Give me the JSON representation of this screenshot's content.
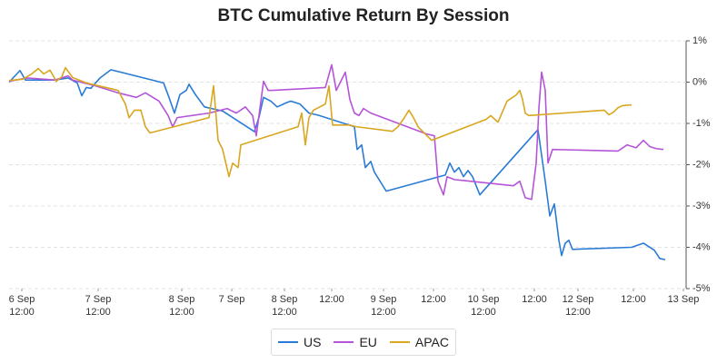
{
  "chart_data": {
    "type": "line",
    "title": "BTC Cumulative Return By Session",
    "xlim": [
      10,
      755
    ],
    "ylim": [
      -5,
      1
    ],
    "yticks": [
      {
        "value": 1,
        "label": "1%"
      },
      {
        "value": 0,
        "label": "0%"
      },
      {
        "value": -1,
        "label": "-1%"
      },
      {
        "value": -2,
        "label": "-2%"
      },
      {
        "value": -3,
        "label": "-3%"
      },
      {
        "value": -4,
        "label": "-4%"
      },
      {
        "value": -5,
        "label": "-5%"
      }
    ],
    "xticks": [
      {
        "value": 24,
        "label": "6 Sep\n12:00"
      },
      {
        "value": 108,
        "label": "7 Sep\n12:00"
      },
      {
        "value": 200,
        "label": "8 Sep\n12:00"
      },
      {
        "value": 255,
        "label": "7 Sep"
      },
      {
        "value": 313,
        "label": "8 Sep\n12:00"
      },
      {
        "value": 365,
        "label": "12:00"
      },
      {
        "value": 422,
        "label": "9 Sep\n12:00"
      },
      {
        "value": 477,
        "label": "12:00"
      },
      {
        "value": 532,
        "label": "10 Sep\n12:00"
      },
      {
        "value": 588,
        "label": "12:00"
      },
      {
        "value": 636,
        "label": "12 Sep\n12:00"
      },
      {
        "value": 697,
        "label": "12:00"
      },
      {
        "value": 752,
        "label": "13 Sep"
      }
    ],
    "grid": true,
    "series": [
      {
        "name": "US",
        "color": "#2a7bd5",
        "x": [
          10,
          22,
          28,
          60,
          75,
          85,
          90,
          95,
          100,
          110,
          122,
          180,
          186,
          192,
          198,
          205,
          208,
          215,
          225,
          245,
          280,
          285,
          290,
          298,
          305,
          315,
          320,
          330,
          340,
          350,
          390,
          393,
          398,
          402,
          408,
          412,
          425,
          490,
          495,
          500,
          505,
          510,
          515,
          520,
          528,
          592,
          600,
          605,
          610,
          615,
          618,
          622,
          626,
          630,
          695,
          708,
          720,
          726,
          732
        ],
        "values": [
          0,
          0.28,
          0.05,
          0.05,
          0.1,
          -0.02,
          -0.33,
          -0.13,
          -0.15,
          0.1,
          0.3,
          -0.02,
          -0.37,
          -0.75,
          -0.3,
          -0.2,
          -0.05,
          -0.3,
          -0.6,
          -0.7,
          -1.2,
          -0.85,
          -0.37,
          -0.46,
          -0.6,
          -0.5,
          -0.46,
          -0.53,
          -0.75,
          -0.8,
          -1.08,
          -1.63,
          -1.52,
          -2.07,
          -1.92,
          -2.18,
          -2.64,
          -2.25,
          -1.96,
          -2.18,
          -2.07,
          -2.29,
          -2.14,
          -2.29,
          -2.73,
          -1.15,
          -2.4,
          -3.24,
          -2.95,
          -3.83,
          -4.2,
          -3.9,
          -3.83,
          -4.05,
          -4.0,
          -3.9,
          -4.07,
          -4.27,
          -4.3
        ]
      },
      {
        "name": "EU",
        "color": "#b455d8",
        "x": [
          10,
          30,
          60,
          75,
          80,
          105,
          130,
          150,
          160,
          175,
          185,
          190,
          195,
          230,
          250,
          260,
          270,
          278,
          282,
          290,
          295,
          300,
          358,
          365,
          370,
          375,
          380,
          385,
          390,
          395,
          400,
          408,
          470,
          478,
          482,
          488,
          492,
          500,
          565,
          572,
          578,
          585,
          590,
          593,
          596,
          600,
          603,
          608,
          680,
          690,
          700,
          708,
          715,
          722,
          730
        ],
        "values": [
          0.02,
          0.1,
          0.05,
          0.15,
          0.05,
          -0.09,
          -0.26,
          -0.37,
          -0.26,
          -0.46,
          -0.81,
          -1.08,
          -0.86,
          -0.75,
          -0.64,
          -0.75,
          -0.6,
          -0.81,
          -1.3,
          0.02,
          -0.2,
          -0.2,
          -0.13,
          0.42,
          -0.2,
          0.02,
          0.24,
          -0.42,
          -0.75,
          -0.81,
          -0.64,
          -0.75,
          -1.26,
          -1.3,
          -2.4,
          -2.73,
          -2.29,
          -2.36,
          -2.51,
          -2.4,
          -2.8,
          -2.84,
          -1.96,
          -0.64,
          0.24,
          -0.2,
          -1.96,
          -1.63,
          -1.67,
          -1.52,
          -1.59,
          -1.41,
          -1.56,
          -1.61,
          -1.63
        ]
      },
      {
        "name": "APAC",
        "color": "#d9a620",
        "x": [
          10,
          25,
          35,
          42,
          48,
          55,
          62,
          68,
          72,
          80,
          95,
          130,
          138,
          142,
          148,
          155,
          160,
          165,
          230,
          235,
          240,
          245,
          252,
          256,
          262,
          265,
          328,
          332,
          336,
          340,
          345,
          358,
          362,
          366,
          385,
          392,
          432,
          438,
          445,
          450,
          455,
          460,
          470,
          475,
          535,
          540,
          548,
          558,
          568,
          572,
          575,
          578,
          582,
          665,
          670,
          675,
          680,
          685,
          695
        ],
        "values": [
          0.04,
          0.07,
          0.2,
          0.33,
          0.2,
          0.29,
          0.02,
          0.13,
          0.35,
          0.11,
          -0.02,
          -0.2,
          -0.53,
          -0.86,
          -0.68,
          -0.68,
          -1.08,
          -1.23,
          -0.86,
          -0.09,
          -1.41,
          -1.63,
          -2.29,
          -1.96,
          -2.07,
          -1.52,
          -1.08,
          -0.75,
          -1.52,
          -0.86,
          -0.68,
          -0.53,
          -0.09,
          -1.04,
          -1.04,
          -1.08,
          -1.19,
          -1.08,
          -0.86,
          -0.68,
          -0.86,
          -1.08,
          -1.3,
          -1.41,
          -0.9,
          -0.81,
          -0.97,
          -0.46,
          -0.31,
          -0.2,
          -0.42,
          -0.75,
          -0.81,
          -0.68,
          -0.79,
          -0.73,
          -0.62,
          -0.57,
          -0.55
        ]
      }
    ]
  }
}
